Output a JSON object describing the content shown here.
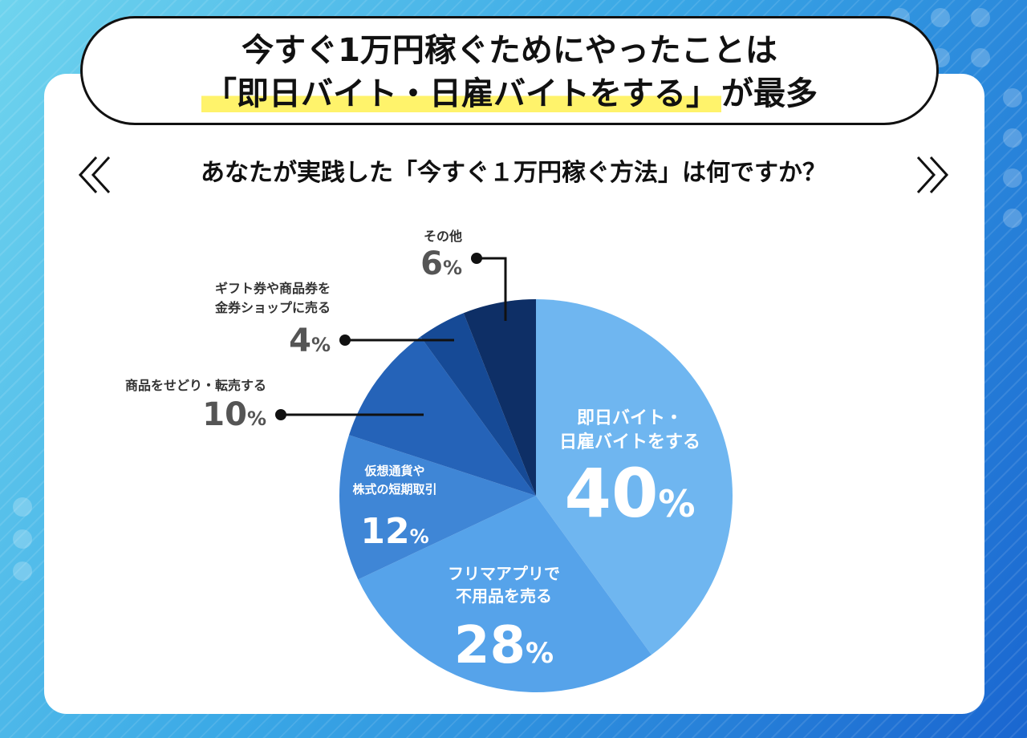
{
  "title": {
    "line1": "今すぐ1万円稼ぐためにやったことは",
    "line2_highlight": "「即日バイト・日雇バイトをする」",
    "line2_tail": "が最多"
  },
  "question": "あなたが実践した「今すぐ１万円稼ぐ方法」は何ですか？",
  "colors": {
    "slice1": "#6fb6f0",
    "slice2": "#56a3ea",
    "slice3": "#3f86d6",
    "slice4": "#2563b8",
    "slice5": "#164a96",
    "slice6": "#0e2f66",
    "background_light": "#6fd4ee",
    "background_dark": "#1a66d0"
  },
  "chart_data": {
    "type": "pie",
    "start_angle_deg": 0,
    "direction": "clockwise",
    "slices": [
      {
        "label_lines": [
          "即日バイト・",
          "日雇バイトをする"
        ],
        "value": 40,
        "value_text": "40",
        "unit": "%",
        "label_placement": "inside"
      },
      {
        "label_lines": [
          "フリマアプリで",
          "不用品を売る"
        ],
        "value": 28,
        "value_text": "28",
        "unit": "%",
        "label_placement": "inside"
      },
      {
        "label_lines": [
          "仮想通貨や",
          "株式の短期取引"
        ],
        "value": 12,
        "value_text": "12",
        "unit": "%",
        "label_placement": "inside"
      },
      {
        "label_lines": [
          "商品をせどり・転売する"
        ],
        "value": 10,
        "value_text": "10",
        "unit": "%",
        "label_placement": "callout"
      },
      {
        "label_lines": [
          "ギフト券や商品券を",
          "金券ショップに売る"
        ],
        "value": 4,
        "value_text": "4",
        "unit": "%",
        "label_placement": "callout"
      },
      {
        "label_lines": [
          "その他"
        ],
        "value": 6,
        "value_text": "6",
        "unit": "%",
        "label_placement": "callout"
      }
    ]
  }
}
